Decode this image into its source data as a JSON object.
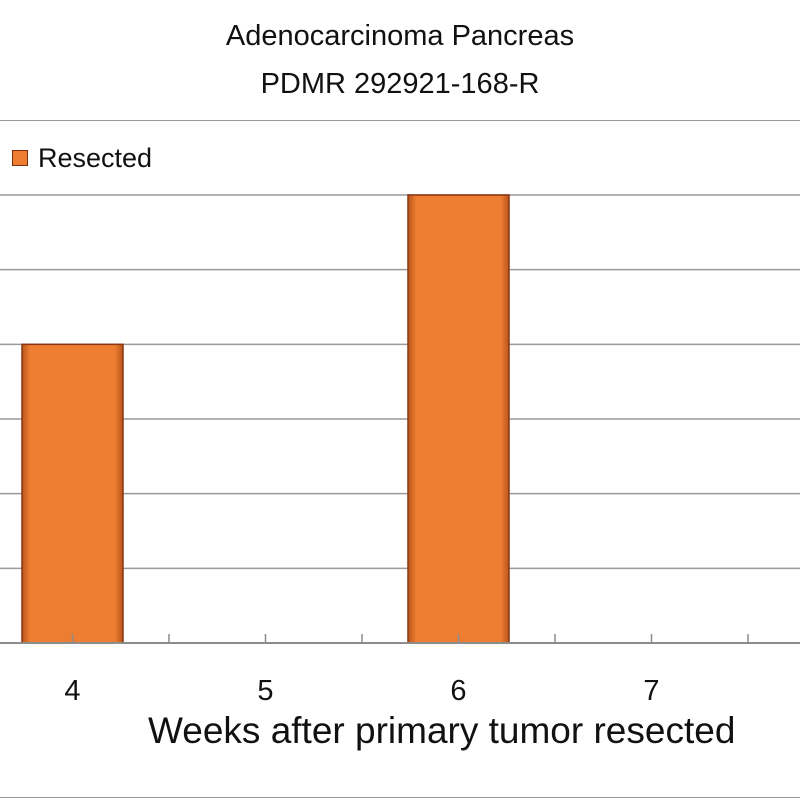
{
  "chart_data": {
    "type": "bar",
    "title": "Adenocarcinoma Pancreas",
    "subtitle": "PDMR 292921-168-R",
    "xlabel": "Weeks after primary tumor resected",
    "ylabel": "",
    "categories": [
      "4",
      "5",
      "6",
      "7"
    ],
    "series": [
      {
        "name": "Resected",
        "values": [
          4,
          0,
          6,
          0
        ],
        "color": "#ED7D31"
      }
    ],
    "ylim": [
      0,
      6
    ],
    "grid": true,
    "legend": "top-left"
  }
}
